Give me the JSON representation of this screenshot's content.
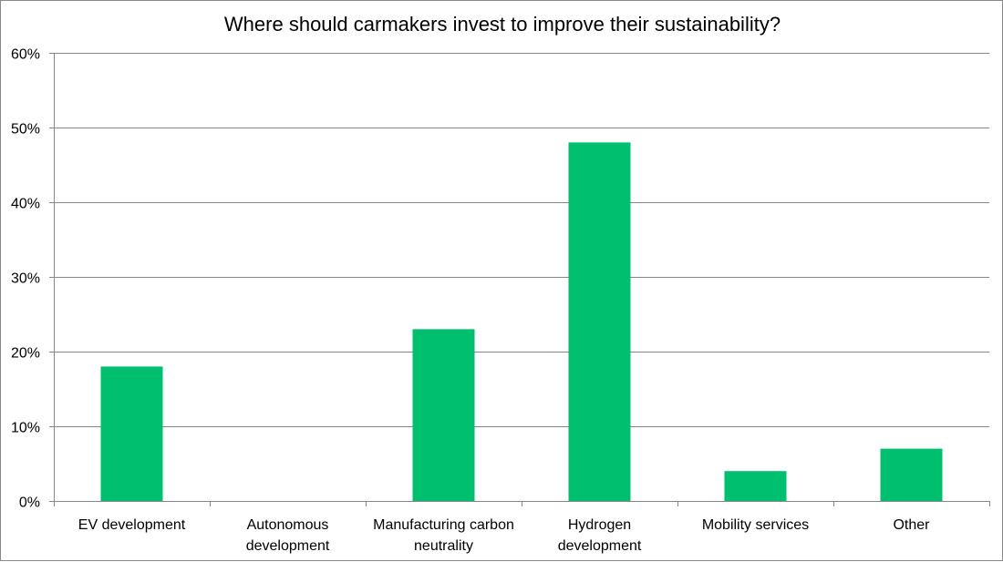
{
  "chart_data": {
    "type": "bar",
    "title": "Where should carmakers invest to improve their sustainability?",
    "xlabel": "",
    "ylabel": "",
    "categories": [
      [
        "EV development"
      ],
      [
        "Autonomous",
        "development"
      ],
      [
        "Manufacturing carbon",
        "neutrality"
      ],
      [
        "Hydrogen",
        "development"
      ],
      [
        "Mobility services"
      ],
      [
        "Other"
      ]
    ],
    "values": [
      18,
      0,
      23,
      48,
      4,
      7
    ],
    "ylim": [
      0,
      60
    ],
    "yticks": [
      0,
      10,
      20,
      30,
      40,
      50,
      60
    ],
    "ytick_labels": [
      "0%",
      "10%",
      "20%",
      "30%",
      "40%",
      "50%",
      "60%"
    ],
    "grid": true,
    "legend": "none",
    "bar_color": "#00BF6F",
    "grid_color": "#868686"
  }
}
